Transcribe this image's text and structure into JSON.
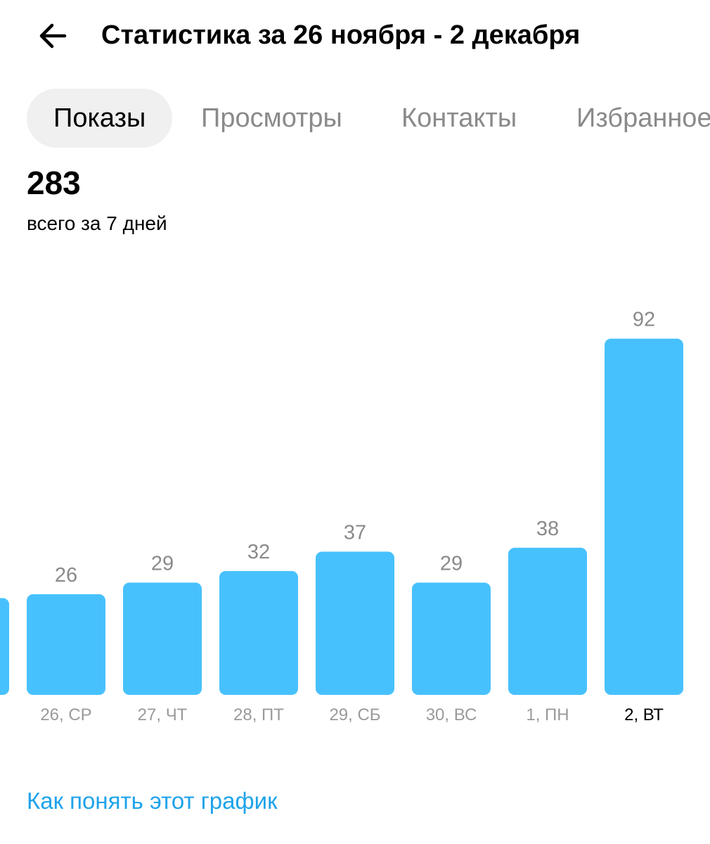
{
  "header": {
    "title": "Статистика за 26 ноября - 2 декабря",
    "back_icon": "arrow-left-icon"
  },
  "tabs": [
    {
      "label": "Показы",
      "active": true
    },
    {
      "label": "Просмотры",
      "active": false
    },
    {
      "label": "Контакты",
      "active": false
    },
    {
      "label": "Избранное",
      "active": false
    }
  ],
  "summary": {
    "total": "283",
    "caption": "всего за 7 дней"
  },
  "colors": {
    "bar": "#47c1fd",
    "link": "#1ea3ea",
    "active_tab_bg": "#f0f0f0"
  },
  "chart_data": {
    "type": "bar",
    "categories": [
      "26, СР",
      "27, ЧТ",
      "28, ПТ",
      "29, СБ",
      "30, ВС",
      "1, ПН",
      "2, ВТ"
    ],
    "values": [
      26,
      29,
      32,
      37,
      29,
      38,
      92
    ],
    "current_category": "2, ВТ",
    "partially_visible_previous_value": 25,
    "title": "",
    "xlabel": "",
    "ylabel": ""
  },
  "footer": {
    "help_link": "Как понять этот график"
  }
}
